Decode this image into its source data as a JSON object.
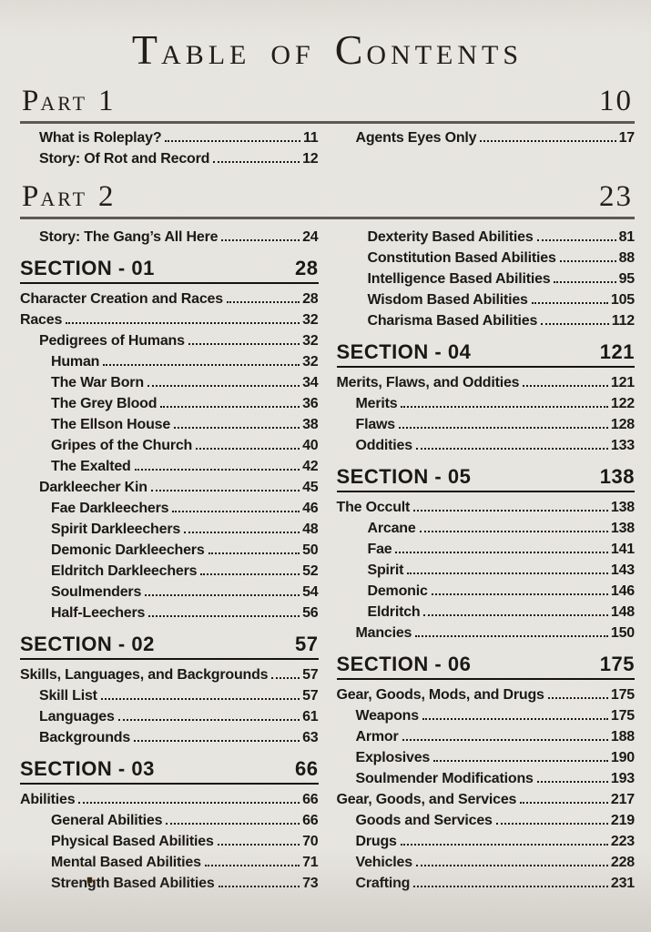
{
  "page": {
    "title": "Table of Contents",
    "paper_color": "#e9e7e2",
    "ink_color": "#1b1916",
    "part_rule_color": "#5c5953"
  },
  "parts": [
    {
      "label": "Part 1",
      "page": "10",
      "left_entries": [
        {
          "label": "What is Roleplay?",
          "page": "11",
          "indent": 1
        },
        {
          "label": "Story: Of Rot and Record",
          "page": "12",
          "indent": 1
        }
      ],
      "right_entries": [
        {
          "label": "Agents Eyes Only",
          "page": "17",
          "indent": 1
        }
      ]
    },
    {
      "label": "Part 2",
      "page": "23",
      "left_entries": [],
      "right_entries": []
    }
  ],
  "columns": {
    "left": [
      {
        "type": "entries",
        "items": [
          {
            "label": "Story: The Gang’s All Here",
            "page": "24",
            "indent": 1
          }
        ]
      },
      {
        "type": "section",
        "title": "SECTION - 01",
        "page": "28",
        "items": [
          {
            "label": "Character Creation and Races",
            "page": "28",
            "indent": 0
          },
          {
            "label": "Races",
            "page": "32",
            "indent": 0
          },
          {
            "label": "Pedigrees of Humans",
            "page": "32",
            "indent": 1
          },
          {
            "label": "Human",
            "page": "32",
            "indent": 2
          },
          {
            "label": "The War Born",
            "page": "34",
            "indent": 2
          },
          {
            "label": "The Grey Blood",
            "page": "36",
            "indent": 2
          },
          {
            "label": "The Ellson House",
            "page": "38",
            "indent": 2
          },
          {
            "label": "Gripes of the Church",
            "page": "40",
            "indent": 2
          },
          {
            "label": "The Exalted",
            "page": "42",
            "indent": 2
          },
          {
            "label": "Darkleecher Kin",
            "page": "45",
            "indent": 1
          },
          {
            "label": "Fae Darkleechers",
            "page": "46",
            "indent": 2
          },
          {
            "label": "Spirit Darkleechers",
            "page": "48",
            "indent": 2
          },
          {
            "label": "Demonic Darkleechers",
            "page": "50",
            "indent": 2
          },
          {
            "label": "Eldritch Darkleechers",
            "page": "52",
            "indent": 2
          },
          {
            "label": "Soulmenders",
            "page": "54",
            "indent": 2
          },
          {
            "label": "Half-Leechers",
            "page": "56",
            "indent": 2
          }
        ]
      },
      {
        "type": "section",
        "title": "SECTION - 02",
        "page": "57",
        "items": [
          {
            "label": "Skills, Languages, and Backgrounds",
            "page": "57",
            "indent": 0
          },
          {
            "label": "Skill List",
            "page": "57",
            "indent": 1
          },
          {
            "label": "Languages",
            "page": "61",
            "indent": 1
          },
          {
            "label": "Backgrounds",
            "page": "63",
            "indent": 1
          }
        ]
      },
      {
        "type": "section",
        "title": "SECTION - 03",
        "page": "66",
        "items": [
          {
            "label": "Abilities",
            "page": "66",
            "indent": 0
          },
          {
            "label": "General Abilities",
            "page": "66",
            "indent": 2
          },
          {
            "label": "Physical Based Abilities",
            "page": "70",
            "indent": 2
          },
          {
            "label": "Mental Based Abilities",
            "page": "71",
            "indent": 2
          },
          {
            "label": "Strength Based Abilities",
            "page": "73",
            "indent": 2
          }
        ]
      }
    ],
    "right": [
      {
        "type": "entries",
        "items": [
          {
            "label": "Dexterity Based Abilities",
            "page": "81",
            "indent": 2
          },
          {
            "label": "Constitution Based Abilities",
            "page": "88",
            "indent": 2
          },
          {
            "label": "Intelligence Based Abilities",
            "page": "95",
            "indent": 2
          },
          {
            "label": "Wisdom Based Abilities",
            "page": "105",
            "indent": 2
          },
          {
            "label": "Charisma Based Abilities",
            "page": "112",
            "indent": 2
          }
        ]
      },
      {
        "type": "section",
        "title": "SECTION - 04",
        "page": "121",
        "items": [
          {
            "label": "Merits, Flaws, and Oddities",
            "page": "121",
            "indent": 0
          },
          {
            "label": "Merits",
            "page": "122",
            "indent": 1
          },
          {
            "label": "Flaws",
            "page": "128",
            "indent": 1
          },
          {
            "label": "Oddities",
            "page": "133",
            "indent": 1
          }
        ]
      },
      {
        "type": "section",
        "title": "SECTION - 05",
        "page": "138",
        "items": [
          {
            "label": "The Occult",
            "page": "138",
            "indent": 0
          },
          {
            "label": "Arcane",
            "page": "138",
            "indent": 2
          },
          {
            "label": "Fae",
            "page": "141",
            "indent": 2
          },
          {
            "label": "Spirit",
            "page": "143",
            "indent": 2
          },
          {
            "label": "Demonic",
            "page": "146",
            "indent": 2
          },
          {
            "label": "Eldritch",
            "page": "148",
            "indent": 2
          },
          {
            "label": "Mancies",
            "page": "150",
            "indent": 1
          }
        ]
      },
      {
        "type": "section",
        "title": "SECTION - 06",
        "page": "175",
        "items": [
          {
            "label": "Gear, Goods, Mods, and Drugs",
            "page": "175",
            "indent": 0
          },
          {
            "label": "Weapons",
            "page": "175",
            "indent": 1
          },
          {
            "label": "Armor",
            "page": "188",
            "indent": 1
          },
          {
            "label": "Explosives",
            "page": "190",
            "indent": 1
          },
          {
            "label": "Soulmender Modifications",
            "page": "193",
            "indent": 1
          },
          {
            "label": "Gear, Goods, and Services",
            "page": "217",
            "indent": 0
          },
          {
            "label": "Goods and Services",
            "page": "219",
            "indent": 1
          },
          {
            "label": "Drugs",
            "page": "223",
            "indent": 1
          },
          {
            "label": "Vehicles",
            "page": "228",
            "indent": 1
          },
          {
            "label": "Crafting",
            "page": "231",
            "indent": 1
          }
        ]
      }
    ]
  }
}
